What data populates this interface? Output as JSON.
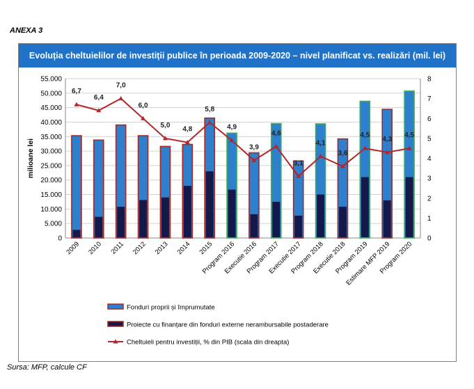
{
  "annex_label": "ANEXA 3",
  "source": "Sursa: MFP, calcule CF",
  "colors": {
    "title_bg": "#1f72c8",
    "own_funds": "#2f7fcf",
    "external_funds": "#15184a",
    "line": "#b0262a",
    "border_red": "#a8281f",
    "border_green": "#38b24a"
  },
  "chart_data": {
    "type": "bar",
    "stacked": true,
    "title": "Evoluția cheltuielilor de investiții publice în perioada 2009-2020 – nivel planificat vs. realizări (mil. lei)",
    "ylabel": "milioane lei",
    "ylim": [
      0,
      55000
    ],
    "y_ticks": [
      "0",
      "5.000",
      "10.000",
      "15.000",
      "20.000",
      "25.000",
      "30.000",
      "35.000",
      "40.000",
      "45.000",
      "50.000",
      "55.000"
    ],
    "y2lim": [
      0,
      8
    ],
    "y2_ticks": [
      "0",
      "1",
      "2",
      "3",
      "4",
      "5",
      "6",
      "7",
      "8"
    ],
    "categories": [
      "2009",
      "2010",
      "2011",
      "2012",
      "2013",
      "2014",
      "2015",
      "Program 2016",
      "Executie 2016",
      "Program 2017",
      "Executie 2017",
      "Program 2018",
      "Executie 2018",
      "Program 2019",
      "Estimare MFP 2019",
      "Program 2020"
    ],
    "bar_border": [
      "red",
      "red",
      "red",
      "red",
      "red",
      "red",
      "red",
      "green",
      "red",
      "green",
      "red",
      "green",
      "red",
      "green",
      "red",
      "green"
    ],
    "series": [
      {
        "name": "Fonduri proprii și împrumutate",
        "type": "bar",
        "values": [
          35300,
          33800,
          39000,
          35300,
          31600,
          32300,
          41400,
          36200,
          29400,
          39500,
          26600,
          39400,
          34200,
          47200,
          44400,
          50700
        ]
      },
      {
        "name": "Proiecte cu finanțare din fonduri externe nerambursabile postaderare",
        "type": "bar",
        "values": [
          2800,
          7300,
          10800,
          13100,
          14000,
          18000,
          23000,
          16700,
          8200,
          12500,
          7700,
          15000,
          10800,
          21000,
          13000,
          21000
        ]
      },
      {
        "name": "Cheltuieli pentru investiții, % din PIB (scala din dreapta)",
        "type": "line",
        "axis": "right",
        "values": [
          6.7,
          6.4,
          7.0,
          6.0,
          5.0,
          4.8,
          5.8,
          4.9,
          3.9,
          4.6,
          3.1,
          4.1,
          3.6,
          4.5,
          4.3,
          4.5
        ],
        "labels": [
          "6,7",
          "6,4",
          "7,0",
          "6,0",
          "5,0",
          "4,8",
          "5,8",
          "4,9",
          "3,9",
          "4,6",
          "3,1",
          "4,1",
          "3,6",
          "4,5",
          "4,3",
          "4,5"
        ]
      }
    ],
    "grid": true,
    "legend": "bottom"
  }
}
